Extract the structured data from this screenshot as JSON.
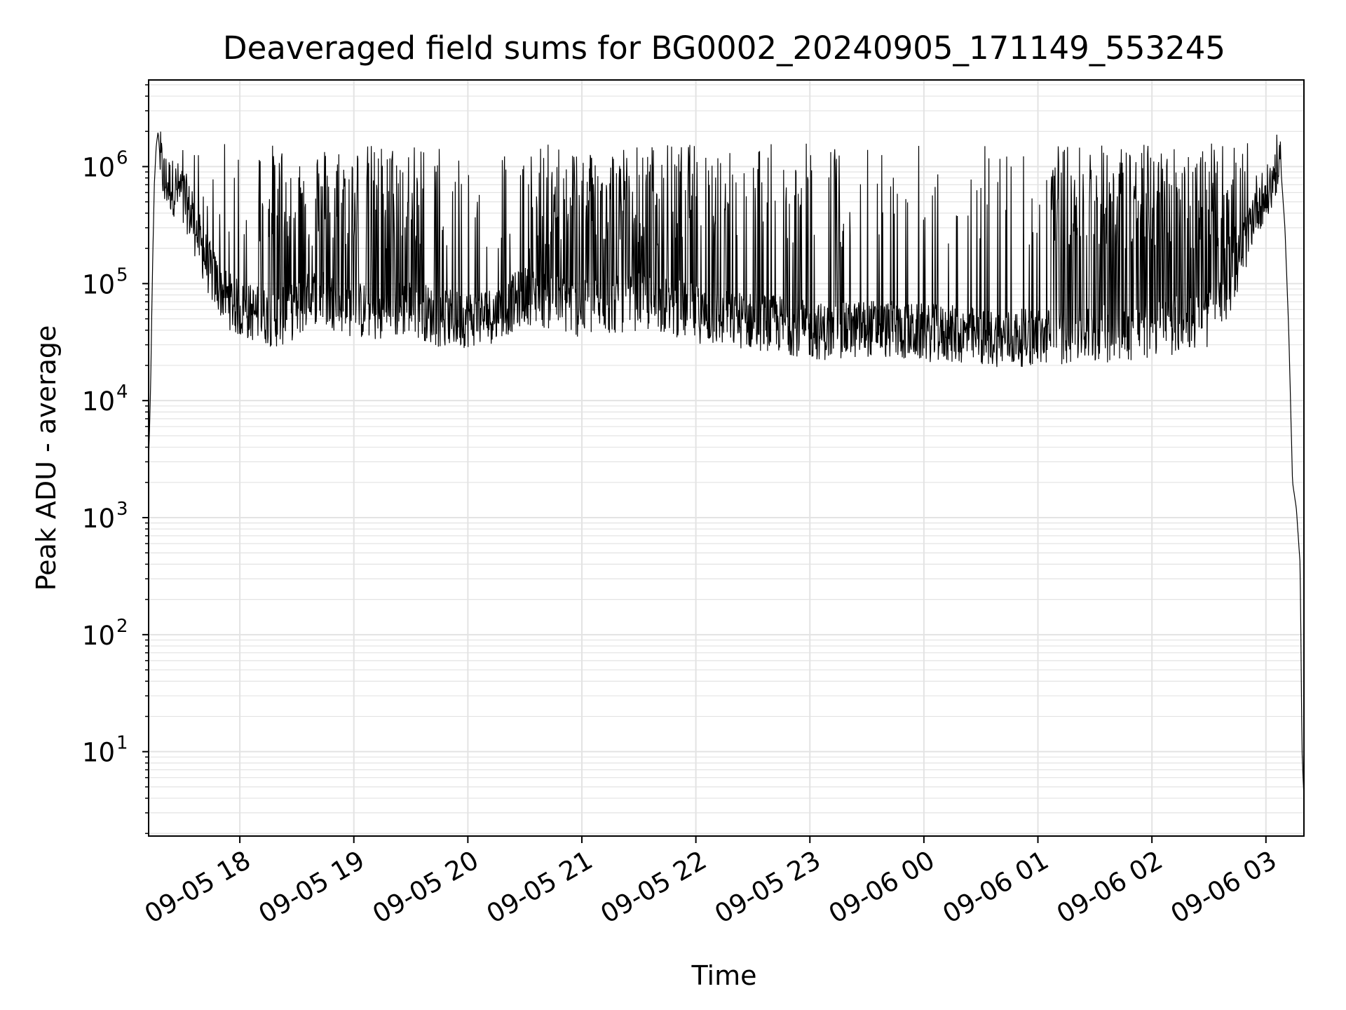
{
  "chart_data": {
    "type": "line",
    "title": "Deaveraged field sums for BG0002_20240905_171149_553245",
    "xlabel": "Time",
    "ylabel": "Peak ADU - average",
    "yscale": "log",
    "grid": true,
    "grid_minor": true,
    "legend": "none",
    "xlim": [
      "2024-09-05 17:12",
      "2024-09-06 03:20"
    ],
    "ylim": [
      1.9,
      5500000
    ],
    "x_ticks": [
      "09-05 18",
      "09-05 19",
      "09-05 20",
      "09-05 21",
      "09-05 22",
      "09-05 23",
      "09-06 00",
      "09-06 01",
      "09-06 02",
      "09-06 03"
    ],
    "y_ticks": [
      {
        "value": 10,
        "base": "10",
        "exp": "1"
      },
      {
        "value": 100,
        "base": "10",
        "exp": "2"
      },
      {
        "value": 1000,
        "base": "10",
        "exp": "3"
      },
      {
        "value": 10000,
        "base": "10",
        "exp": "4"
      },
      {
        "value": 100000,
        "base": "10",
        "exp": "5"
      },
      {
        "value": 1000000,
        "base": "10",
        "exp": "6"
      }
    ],
    "line_color": "#000000",
    "grid_color": "#e3e3e3",
    "series": [
      {
        "x": [
          "2024-09-05 17:12",
          "2024-09-05 17:13",
          "2024-09-05 17:14",
          "2024-09-05 17:15",
          "2024-09-05 17:16",
          "2024-09-05 17:17",
          "2024-09-05 17:18",
          "2024-09-05 17:20",
          "2024-09-05 17:23",
          "2024-09-05 17:26",
          "2024-09-05 17:30",
          "2024-09-05 17:35",
          "2024-09-05 17:40",
          "2024-09-05 17:45",
          "2024-09-05 17:50",
          "2024-09-05 17:55",
          "2024-09-05 18:00",
          "2024-09-05 18:10",
          "2024-09-05 18:20",
          "2024-09-05 18:30",
          "2024-09-05 18:40",
          "2024-09-05 18:50",
          "2024-09-05 19:00",
          "2024-09-05 19:15",
          "2024-09-05 19:30",
          "2024-09-05 19:45",
          "2024-09-05 20:00",
          "2024-09-05 20:15",
          "2024-09-05 20:30",
          "2024-09-05 20:45",
          "2024-09-05 21:00",
          "2024-09-05 21:15",
          "2024-09-05 21:30",
          "2024-09-05 21:45",
          "2024-09-05 22:00",
          "2024-09-05 22:15",
          "2024-09-05 22:30",
          "2024-09-05 22:45",
          "2024-09-05 23:00",
          "2024-09-05 23:15",
          "2024-09-05 23:30",
          "2024-09-05 23:45",
          "2024-09-06 00:00",
          "2024-09-06 00:15",
          "2024-09-06 00:30",
          "2024-09-06 00:45",
          "2024-09-06 01:00",
          "2024-09-06 01:15",
          "2024-09-06 01:30",
          "2024-09-06 01:45",
          "2024-09-06 02:00",
          "2024-09-06 02:15",
          "2024-09-06 02:30",
          "2024-09-06 02:40",
          "2024-09-06 02:50",
          "2024-09-06 02:55",
          "2024-09-06 03:00",
          "2024-09-06 03:03",
          "2024-09-06 03:06",
          "2024-09-06 03:08",
          "2024-09-06 03:10",
          "2024-09-06 03:12",
          "2024-09-06 03:14",
          "2024-09-06 03:16",
          "2024-09-06 03:18",
          "2024-09-06 03:19",
          "2024-09-06 03:20"
        ],
        "y": [
          3000,
          12000,
          120000,
          700000,
          1500000,
          2000000,
          1200000,
          800000,
          700000,
          650000,
          600000,
          350000,
          200000,
          120000,
          90000,
          70000,
          60000,
          55000,
          50000,
          60000,
          80000,
          70000,
          60000,
          55000,
          65000,
          50000,
          50000,
          55000,
          80000,
          70000,
          60000,
          65000,
          70000,
          65000,
          55000,
          50000,
          48000,
          45000,
          40000,
          38000,
          42000,
          40000,
          38000,
          37000,
          35000,
          34000,
          35000,
          36000,
          37000,
          38000,
          40000,
          45000,
          50000,
          80000,
          250000,
          500000,
          550000,
          700000,
          1100000,
          900000,
          300000,
          40000,
          2000,
          1200,
          400,
          10,
          4
        ]
      }
    ]
  }
}
